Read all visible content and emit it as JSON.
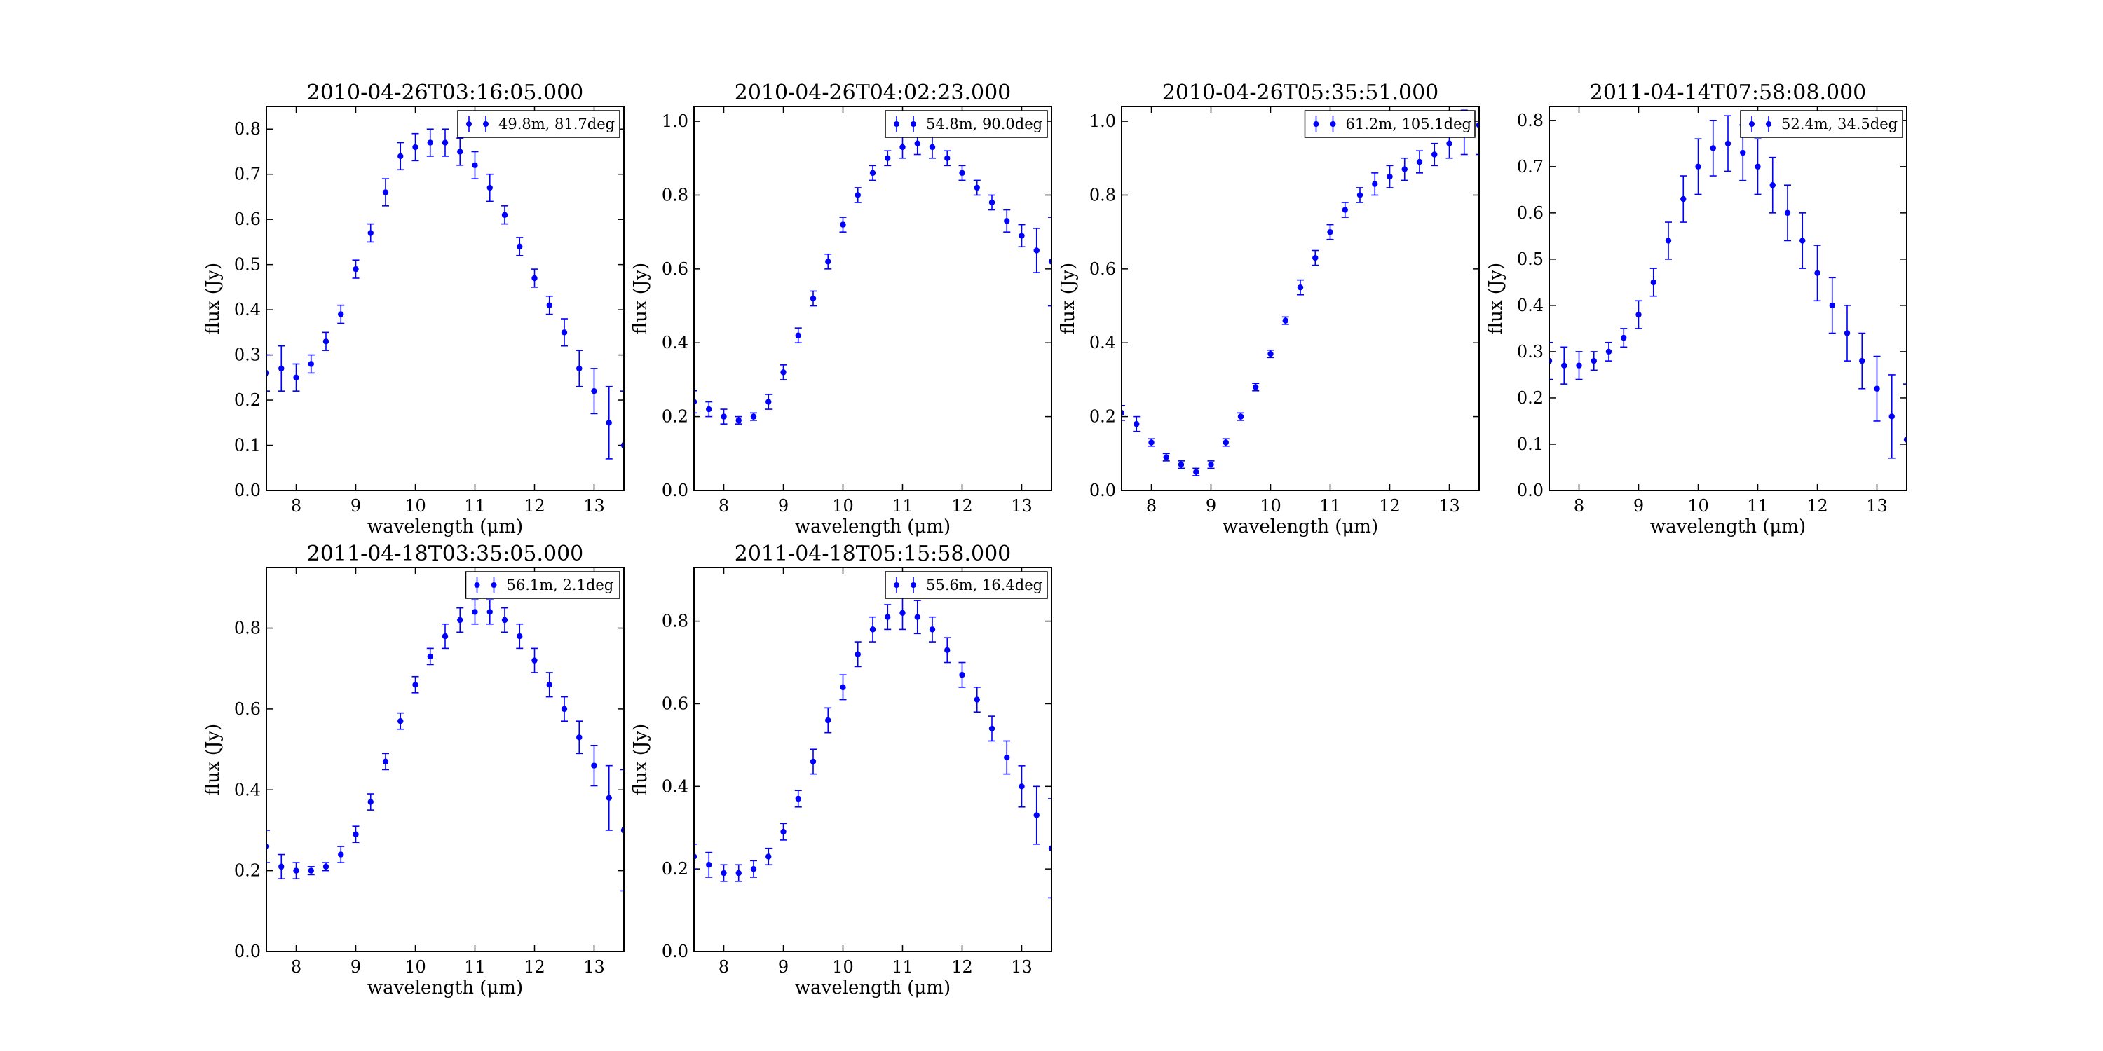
{
  "chart_data": [
    {
      "type": "scatter",
      "title": "2010-04-26T03:16:05.000",
      "xlabel": "wavelength (μm)",
      "ylabel": "flux (Jy)",
      "xlim": [
        7.5,
        13.5
      ],
      "ylim": [
        0.0,
        0.85
      ],
      "xticks": [
        8,
        9,
        10,
        11,
        12,
        13
      ],
      "yticks": [
        0.0,
        0.1,
        0.2,
        0.3,
        0.4,
        0.5,
        0.6,
        0.7,
        0.8
      ],
      "legend": "upper right",
      "series": [
        {
          "name": "49.8m, 81.7deg",
          "color": "#0000ff",
          "errorbars": true,
          "x": [
            7.5,
            7.75,
            8.0,
            8.25,
            8.5,
            8.75,
            9.0,
            9.25,
            9.5,
            9.75,
            10.0,
            10.25,
            10.5,
            10.75,
            11.0,
            11.25,
            11.5,
            11.75,
            12.0,
            12.25,
            12.5,
            12.75,
            13.0,
            13.25,
            13.5
          ],
          "y": [
            0.26,
            0.27,
            0.25,
            0.28,
            0.33,
            0.39,
            0.49,
            0.57,
            0.66,
            0.74,
            0.76,
            0.77,
            0.77,
            0.75,
            0.72,
            0.67,
            0.61,
            0.54,
            0.47,
            0.41,
            0.35,
            0.27,
            0.22,
            0.15,
            0.1
          ],
          "err": [
            0.04,
            0.05,
            0.03,
            0.02,
            0.02,
            0.02,
            0.02,
            0.02,
            0.03,
            0.03,
            0.03,
            0.03,
            0.03,
            0.03,
            0.03,
            0.03,
            0.02,
            0.02,
            0.02,
            0.02,
            0.03,
            0.04,
            0.05,
            0.08,
            0.12
          ]
        }
      ]
    },
    {
      "type": "scatter",
      "title": "2010-04-26T04:02:23.000",
      "xlabel": "wavelength (μm)",
      "ylabel": "flux (Jy)",
      "xlim": [
        7.5,
        13.5
      ],
      "ylim": [
        0.0,
        1.04
      ],
      "xticks": [
        8,
        9,
        10,
        11,
        12,
        13
      ],
      "yticks": [
        0.0,
        0.2,
        0.4,
        0.6,
        0.8,
        1.0
      ],
      "legend": "upper right",
      "series": [
        {
          "name": "54.8m, 90.0deg",
          "color": "#0000ff",
          "errorbars": true,
          "x": [
            7.5,
            7.75,
            8.0,
            8.25,
            8.5,
            8.75,
            9.0,
            9.25,
            9.5,
            9.75,
            10.0,
            10.25,
            10.5,
            10.75,
            11.0,
            11.25,
            11.5,
            11.75,
            12.0,
            12.25,
            12.5,
            12.75,
            13.0,
            13.25,
            13.5
          ],
          "y": [
            0.24,
            0.22,
            0.2,
            0.19,
            0.2,
            0.24,
            0.32,
            0.42,
            0.52,
            0.62,
            0.72,
            0.8,
            0.86,
            0.9,
            0.93,
            0.94,
            0.93,
            0.9,
            0.86,
            0.82,
            0.78,
            0.73,
            0.69,
            0.65,
            0.62
          ],
          "err": [
            0.03,
            0.02,
            0.02,
            0.01,
            0.01,
            0.02,
            0.02,
            0.02,
            0.02,
            0.02,
            0.02,
            0.02,
            0.02,
            0.02,
            0.03,
            0.03,
            0.03,
            0.02,
            0.02,
            0.02,
            0.02,
            0.03,
            0.03,
            0.06,
            0.12
          ]
        }
      ]
    },
    {
      "type": "scatter",
      "title": "2010-04-26T05:35:51.000",
      "xlabel": "wavelength (μm)",
      "ylabel": "flux (Jy)",
      "xlim": [
        7.5,
        13.5
      ],
      "ylim": [
        0.0,
        1.04
      ],
      "xticks": [
        8,
        9,
        10,
        11,
        12,
        13
      ],
      "yticks": [
        0.0,
        0.2,
        0.4,
        0.6,
        0.8,
        1.0
      ],
      "legend": "upper right",
      "series": [
        {
          "name": "61.2m, 105.1deg",
          "color": "#0000ff",
          "errorbars": true,
          "x": [
            7.5,
            7.75,
            8.0,
            8.25,
            8.5,
            8.75,
            9.0,
            9.25,
            9.5,
            9.75,
            10.0,
            10.25,
            10.5,
            10.75,
            11.0,
            11.25,
            11.5,
            11.75,
            12.0,
            12.25,
            12.5,
            12.75,
            13.0,
            13.25,
            13.5
          ],
          "y": [
            0.21,
            0.18,
            0.13,
            0.09,
            0.07,
            0.05,
            0.07,
            0.13,
            0.2,
            0.28,
            0.37,
            0.46,
            0.55,
            0.63,
            0.7,
            0.76,
            0.8,
            0.83,
            0.85,
            0.87,
            0.89,
            0.91,
            0.94,
            0.97,
            0.99
          ],
          "err": [
            0.02,
            0.02,
            0.01,
            0.01,
            0.01,
            0.01,
            0.01,
            0.01,
            0.01,
            0.01,
            0.01,
            0.01,
            0.02,
            0.02,
            0.02,
            0.02,
            0.02,
            0.03,
            0.03,
            0.03,
            0.03,
            0.03,
            0.04,
            0.06,
            0.08
          ]
        }
      ]
    },
    {
      "type": "scatter",
      "title": "2011-04-14T07:58:08.000",
      "xlabel": "wavelength (μm)",
      "ylabel": "flux (Jy)",
      "xlim": [
        7.5,
        13.5
      ],
      "ylim": [
        0.0,
        0.83
      ],
      "xticks": [
        8,
        9,
        10,
        11,
        12,
        13
      ],
      "yticks": [
        0.0,
        0.1,
        0.2,
        0.3,
        0.4,
        0.5,
        0.6,
        0.7,
        0.8
      ],
      "legend": "upper right",
      "series": [
        {
          "name": "52.4m, 34.5deg",
          "color": "#0000ff",
          "errorbars": true,
          "x": [
            7.5,
            7.75,
            8.0,
            8.25,
            8.5,
            8.75,
            9.0,
            9.25,
            9.5,
            9.75,
            10.0,
            10.25,
            10.5,
            10.75,
            11.0,
            11.25,
            11.5,
            11.75,
            12.0,
            12.25,
            12.5,
            12.75,
            13.0,
            13.25,
            13.5
          ],
          "y": [
            0.28,
            0.27,
            0.27,
            0.28,
            0.3,
            0.33,
            0.38,
            0.45,
            0.54,
            0.63,
            0.7,
            0.74,
            0.75,
            0.73,
            0.7,
            0.66,
            0.6,
            0.54,
            0.47,
            0.4,
            0.34,
            0.28,
            0.22,
            0.16,
            0.11
          ],
          "err": [
            0.04,
            0.04,
            0.03,
            0.02,
            0.02,
            0.02,
            0.03,
            0.03,
            0.04,
            0.05,
            0.06,
            0.06,
            0.06,
            0.06,
            0.06,
            0.06,
            0.06,
            0.06,
            0.06,
            0.06,
            0.06,
            0.06,
            0.07,
            0.09,
            0.12
          ]
        }
      ]
    },
    {
      "type": "scatter",
      "title": "2011-04-18T03:35:05.000",
      "xlabel": "wavelength (μm)",
      "ylabel": "flux (Jy)",
      "xlim": [
        7.5,
        13.5
      ],
      "ylim": [
        0.0,
        0.95
      ],
      "xticks": [
        8,
        9,
        10,
        11,
        12,
        13
      ],
      "yticks": [
        0.0,
        0.2,
        0.4,
        0.6,
        0.8
      ],
      "legend": "upper right",
      "series": [
        {
          "name": "56.1m, 2.1deg",
          "color": "#0000ff",
          "errorbars": true,
          "x": [
            7.5,
            7.75,
            8.0,
            8.25,
            8.5,
            8.75,
            9.0,
            9.25,
            9.5,
            9.75,
            10.0,
            10.25,
            10.5,
            10.75,
            11.0,
            11.25,
            11.5,
            11.75,
            12.0,
            12.25,
            12.5,
            12.75,
            13.0,
            13.25,
            13.5
          ],
          "y": [
            0.26,
            0.21,
            0.2,
            0.2,
            0.21,
            0.24,
            0.29,
            0.37,
            0.47,
            0.57,
            0.66,
            0.73,
            0.78,
            0.82,
            0.84,
            0.84,
            0.82,
            0.78,
            0.72,
            0.66,
            0.6,
            0.53,
            0.46,
            0.38,
            0.3
          ],
          "err": [
            0.04,
            0.03,
            0.02,
            0.01,
            0.01,
            0.02,
            0.02,
            0.02,
            0.02,
            0.02,
            0.02,
            0.02,
            0.03,
            0.03,
            0.03,
            0.03,
            0.03,
            0.03,
            0.03,
            0.03,
            0.03,
            0.04,
            0.05,
            0.08,
            0.15
          ]
        }
      ]
    },
    {
      "type": "scatter",
      "title": "2011-04-18T05:15:58.000",
      "xlabel": "wavelength (μm)",
      "ylabel": "flux (Jy)",
      "xlim": [
        7.5,
        13.5
      ],
      "ylim": [
        0.0,
        0.93
      ],
      "xticks": [
        8,
        9,
        10,
        11,
        12,
        13
      ],
      "yticks": [
        0.0,
        0.2,
        0.4,
        0.6,
        0.8
      ],
      "legend": "upper right",
      "series": [
        {
          "name": "55.6m, 16.4deg",
          "color": "#0000ff",
          "errorbars": true,
          "x": [
            7.5,
            7.75,
            8.0,
            8.25,
            8.5,
            8.75,
            9.0,
            9.25,
            9.5,
            9.75,
            10.0,
            10.25,
            10.5,
            10.75,
            11.0,
            11.25,
            11.5,
            11.75,
            12.0,
            12.25,
            12.5,
            12.75,
            13.0,
            13.25,
            13.5
          ],
          "y": [
            0.23,
            0.21,
            0.19,
            0.19,
            0.2,
            0.23,
            0.29,
            0.37,
            0.46,
            0.56,
            0.64,
            0.72,
            0.78,
            0.81,
            0.82,
            0.81,
            0.78,
            0.73,
            0.67,
            0.61,
            0.54,
            0.47,
            0.4,
            0.33,
            0.25
          ],
          "err": [
            0.03,
            0.03,
            0.02,
            0.02,
            0.02,
            0.02,
            0.02,
            0.02,
            0.03,
            0.03,
            0.03,
            0.03,
            0.03,
            0.03,
            0.04,
            0.04,
            0.03,
            0.03,
            0.03,
            0.03,
            0.03,
            0.04,
            0.05,
            0.07,
            0.12
          ]
        }
      ]
    }
  ]
}
